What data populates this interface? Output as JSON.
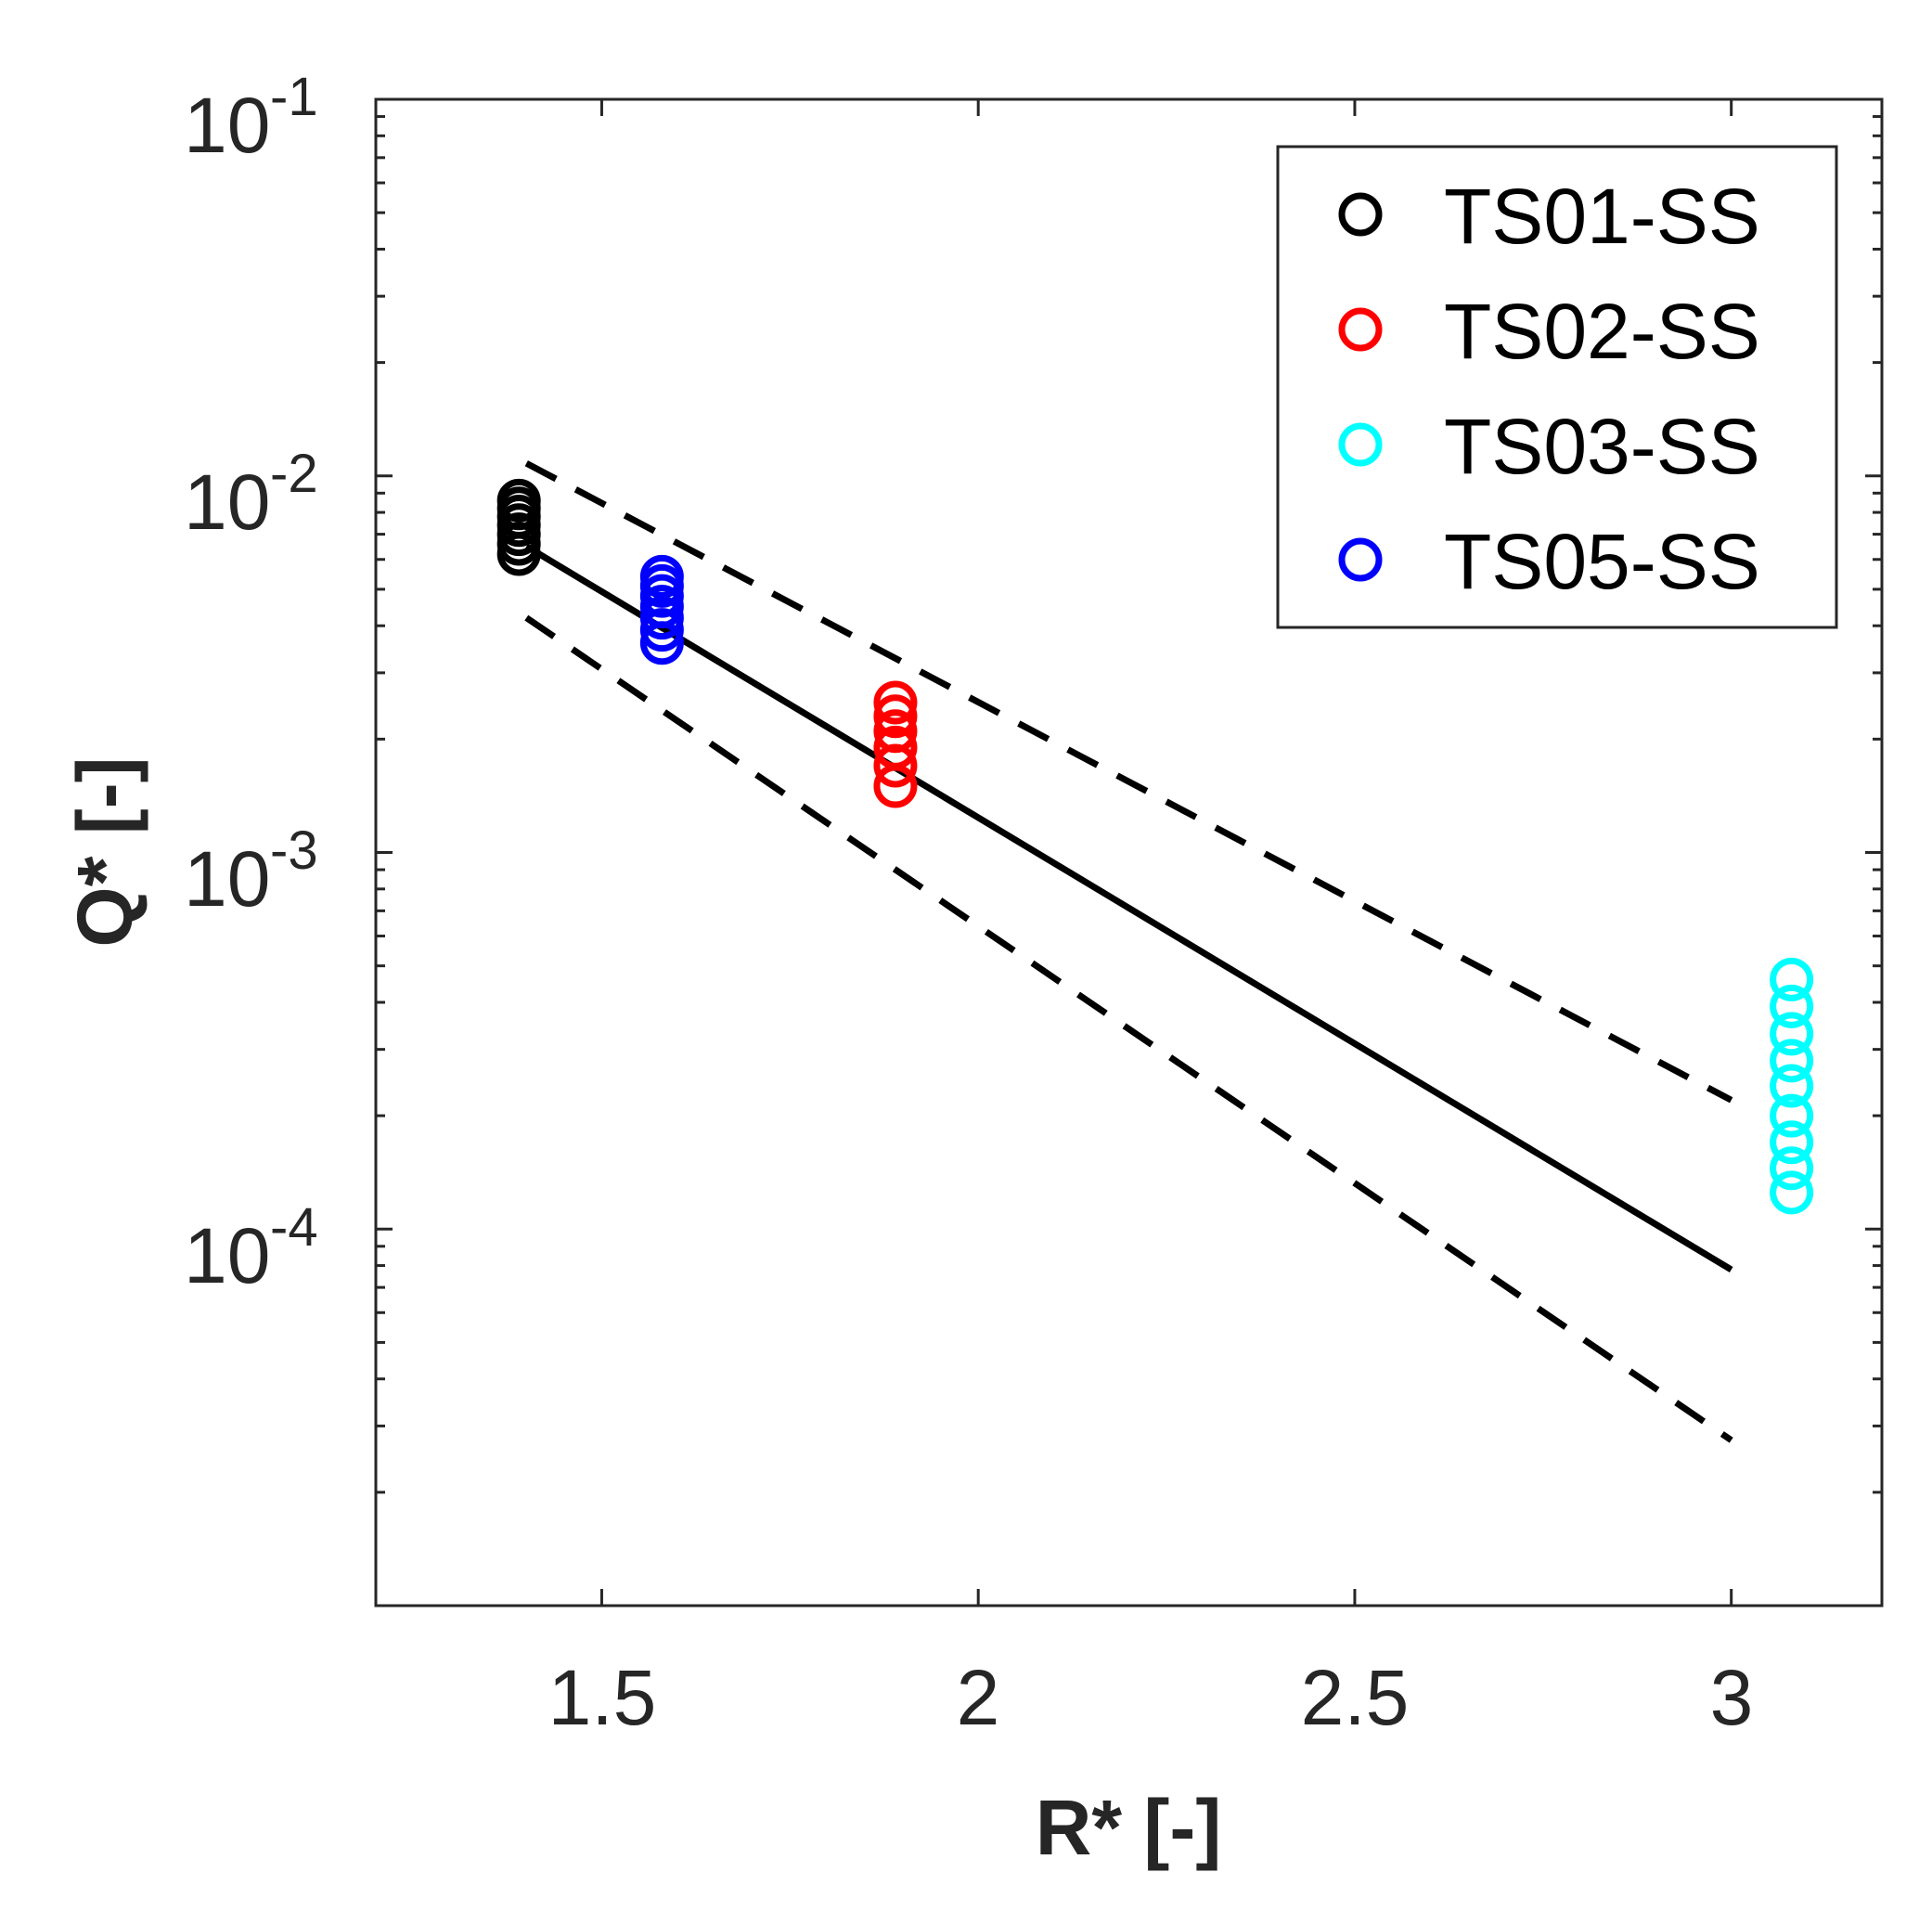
{
  "chart_data": {
    "type": "scatter",
    "xlabel": "R* [-]",
    "ylabel": "Q* [-]",
    "xlim": [
      1.2,
      3.2
    ],
    "ylim": [
      1e-05,
      0.1
    ],
    "yscale": "log",
    "xticks": [
      {
        "value": 1.5,
        "label": "1.5"
      },
      {
        "value": 2,
        "label": "2"
      },
      {
        "value": 2.5,
        "label": "2.5"
      },
      {
        "value": 3,
        "label": "3"
      }
    ],
    "yticks": [
      {
        "value": 0.1,
        "base": "10",
        "exp": "-1"
      },
      {
        "value": 0.01,
        "base": "10",
        "exp": "-2"
      },
      {
        "value": 0.001,
        "base": "10",
        "exp": "-3"
      },
      {
        "value": 0.0001,
        "base": "10",
        "exp": "-4"
      }
    ],
    "legend": {
      "placement": "top-right"
    },
    "series": [
      {
        "name": "TS01-SS",
        "color": "#000000",
        "x": 1.39,
        "y": [
          0.0062,
          0.0066,
          0.007,
          0.0074,
          0.0078,
          0.0082,
          0.0086
        ]
      },
      {
        "name": "TS02-SS",
        "color": "#ff0000",
        "x": 1.89,
        "y": [
          0.0015,
          0.0017,
          0.0019,
          0.0021,
          0.0023,
          0.0025
        ]
      },
      {
        "name": "TS03-SS",
        "color": "#00ffff",
        "x": 3.08,
        "y": [
          0.000125,
          0.000145,
          0.00017,
          0.0002,
          0.00024,
          0.00028,
          0.00033,
          0.00039,
          0.00046
        ]
      },
      {
        "name": "TS05-SS",
        "color": "#0000ff",
        "x": 1.58,
        "y": [
          0.0036,
          0.0039,
          0.0042,
          0.0045,
          0.0048,
          0.0051,
          0.0054
        ]
      }
    ],
    "lines": [
      {
        "name": "fit",
        "style": "solid",
        "x": [
          1.4,
          3.0
        ],
        "y": [
          0.0065,
          7.8e-05
        ]
      },
      {
        "name": "upper-bound",
        "style": "dashed",
        "x": [
          1.4,
          3.0
        ],
        "y": [
          0.0108,
          0.00022
        ]
      },
      {
        "name": "lower-bound",
        "style": "dashed",
        "x": [
          1.4,
          3.0
        ],
        "y": [
          0.0042,
          2.75e-05
        ]
      }
    ]
  }
}
